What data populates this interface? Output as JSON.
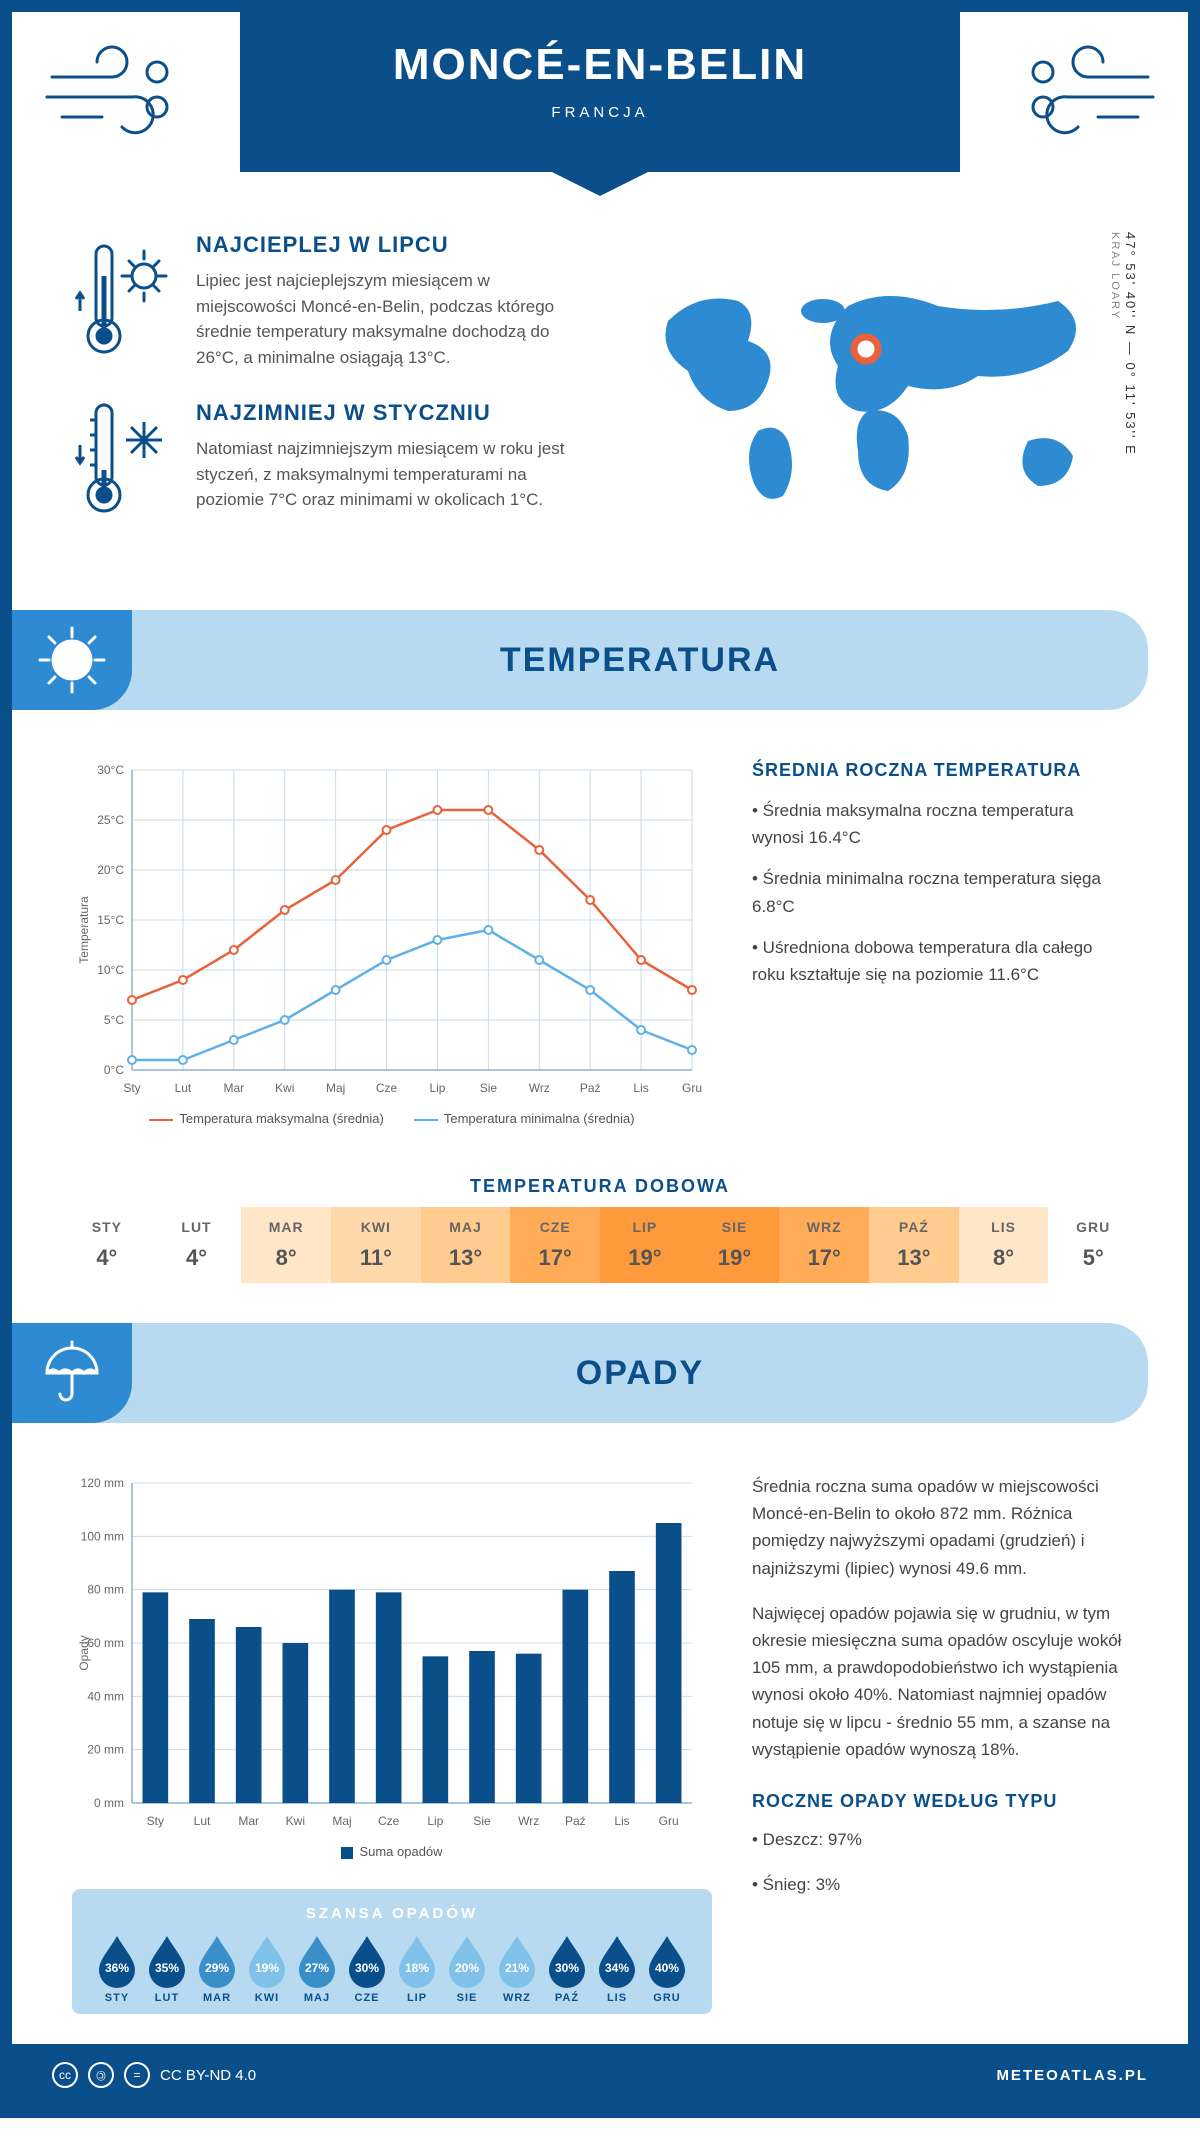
{
  "header": {
    "city": "MONCÉ-EN-BELIN",
    "country": "FRANCJA"
  },
  "coords": {
    "lat": "47° 53' 40'' N — 0° 11' 53'' E",
    "region": "KRAJ LOARY"
  },
  "intro": {
    "hot": {
      "title": "NAJCIEPLEJ W LIPCU",
      "text": "Lipiec jest najcieplejszym miesiącem w miejscowości Moncé-en-Belin, podczas którego średnie temperatury maksymalne dochodzą do 26°C, a minimalne osiągają 13°C."
    },
    "cold": {
      "title": "NAJZIMNIEJ W STYCZNIU",
      "text": "Natomiast najzimniejszym miesiącem w roku jest styczeń, z maksymalnymi temperaturami na poziomie 7°C oraz minimami w okolicach 1°C."
    }
  },
  "sections": {
    "temp": "TEMPERATURA",
    "precip": "OPADY"
  },
  "months_short": [
    "Sty",
    "Lut",
    "Mar",
    "Kwi",
    "Maj",
    "Cze",
    "Lip",
    "Sie",
    "Wrz",
    "Paź",
    "Lis",
    "Gru"
  ],
  "months_upper": [
    "STY",
    "LUT",
    "MAR",
    "KWI",
    "MAJ",
    "CZE",
    "LIP",
    "SIE",
    "WRZ",
    "PAŹ",
    "LIS",
    "GRU"
  ],
  "temp_chart": {
    "ylabel": "Temperatura",
    "ymin": 0,
    "ymax": 30,
    "ystep": 5,
    "max_series": {
      "label": "Temperatura maksymalna (średnia)",
      "color": "#e8613c",
      "values": [
        7,
        9,
        12,
        16,
        19,
        24,
        26,
        26,
        22,
        17,
        11,
        8
      ]
    },
    "min_series": {
      "label": "Temperatura minimalna (średnia)",
      "color": "#5fb0e8",
      "values": [
        1,
        1,
        3,
        5,
        8,
        11,
        13,
        14,
        11,
        8,
        4,
        2
      ]
    },
    "grid_color": "#c9dbe8",
    "axis_color": "#8fb3cf"
  },
  "temp_info": {
    "heading": "ŚREDNIA ROCZNA TEMPERATURA",
    "lines": [
      "• Średnia maksymalna roczna temperatura wynosi 16.4°C",
      "• Średnia minimalna roczna temperatura sięga 6.8°C",
      "• Uśredniona dobowa temperatura dla całego roku kształtuje się na poziomie 11.6°C"
    ]
  },
  "daily": {
    "title": "TEMPERATURA DOBOWA",
    "values": [
      4,
      4,
      8,
      11,
      13,
      17,
      19,
      19,
      17,
      13,
      8,
      5
    ],
    "colors": [
      "#ffffff",
      "#ffffff",
      "#ffe6c9",
      "#ffd8ab",
      "#ffcb8e",
      "#ffab57",
      "#ff9a3c",
      "#ff9a3c",
      "#ffab57",
      "#ffcb8e",
      "#ffe6c9",
      "#ffffff"
    ]
  },
  "precip_chart": {
    "ylabel": "Opady",
    "ymin": 0,
    "ymax": 120,
    "ystep": 20,
    "series": {
      "label": "Suma opadów",
      "color": "#0b4f8a",
      "values": [
        79,
        69,
        66,
        60,
        80,
        79,
        55,
        57,
        56,
        80,
        87,
        105
      ]
    },
    "grid_color": "#c9dbe8",
    "axis_color": "#8fb3cf"
  },
  "precip_info": {
    "p1": "Średnia roczna suma opadów w miejscowości Moncé-en-Belin to około 872 mm. Różnica pomiędzy najwyższymi opadami (grudzień) i najniższymi (lipiec) wynosi 49.6 mm.",
    "p2": "Najwięcej opadów pojawia się w grudniu, w tym okresie miesięczna suma opadów oscyluje wokół 105 mm, a prawdopodobieństwo ich wystąpienia wynosi około 40%. Natomiast najmniej opadów notuje się w lipcu - średnio 55 mm, a szanse na wystąpienie opadów wynoszą 18%.",
    "type_heading": "ROCZNE OPADY WEDŁUG TYPU",
    "type_lines": [
      "• Deszcz: 97%",
      "• Śnieg: 3%"
    ]
  },
  "chance": {
    "title": "SZANSA OPADÓW",
    "values": [
      36,
      35,
      29,
      19,
      27,
      30,
      18,
      20,
      21,
      30,
      34,
      40
    ],
    "color_low": "#7fc1e8",
    "color_high": "#0b4f8a"
  },
  "footer": {
    "license": "CC BY-ND 4.0",
    "site": "METEOATLAS.PL"
  }
}
